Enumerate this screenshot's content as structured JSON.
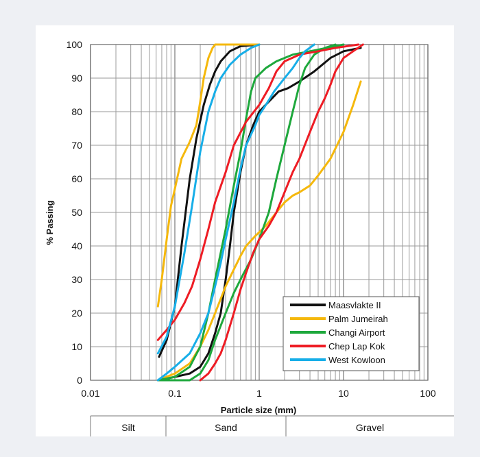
{
  "chart_data": {
    "type": "line",
    "x_scale": "log",
    "xlim": [
      0.01,
      100
    ],
    "ylim": [
      0,
      100
    ],
    "xlabel": "Particle size (mm)",
    "ylabel": "% Passing",
    "x_ticks": [
      "0.01",
      "0.1",
      "1",
      "10",
      "100"
    ],
    "y_ticks": [
      "0",
      "10",
      "20",
      "30",
      "40",
      "50",
      "60",
      "70",
      "80",
      "90",
      "100"
    ],
    "grid": true,
    "legend_position": "bottom-right",
    "classification": [
      "Silt",
      "Sand",
      "Gravel"
    ],
    "series": [
      {
        "name": "Maasvlakte II",
        "color": "#111111",
        "curves": [
          [
            [
              0.065,
              7
            ],
            [
              0.08,
              12
            ],
            [
              0.1,
              22
            ],
            [
              0.12,
              40
            ],
            [
              0.15,
              60
            ],
            [
              0.18,
              72
            ],
            [
              0.22,
              82
            ],
            [
              0.26,
              88
            ],
            [
              0.3,
              92
            ],
            [
              0.35,
              95
            ],
            [
              0.45,
              98
            ],
            [
              0.6,
              99.5
            ],
            [
              1,
              100
            ]
          ],
          [
            [
              0.065,
              0
            ],
            [
              0.1,
              1
            ],
            [
              0.15,
              2
            ],
            [
              0.2,
              4
            ],
            [
              0.25,
              8
            ],
            [
              0.3,
              14
            ],
            [
              0.35,
              20
            ],
            [
              0.4,
              30
            ],
            [
              0.45,
              40
            ],
            [
              0.5,
              50
            ],
            [
              0.6,
              62
            ],
            [
              0.7,
              70
            ],
            [
              0.85,
              76
            ],
            [
              1,
              80
            ],
            [
              1.3,
              83
            ],
            [
              1.7,
              86
            ],
            [
              2.2,
              87
            ],
            [
              3,
              89
            ],
            [
              4.5,
              92
            ],
            [
              7,
              96
            ],
            [
              10,
              98
            ],
            [
              16,
              99
            ]
          ]
        ]
      },
      {
        "name": "Palm Jumeirah",
        "color": "#f5b80c",
        "curves": [
          [
            [
              0.063,
              22
            ],
            [
              0.07,
              30
            ],
            [
              0.08,
              42
            ],
            [
              0.09,
              52
            ],
            [
              0.1,
              57
            ],
            [
              0.12,
              66
            ],
            [
              0.15,
              71
            ],
            [
              0.18,
              76
            ],
            [
              0.2,
              83
            ],
            [
              0.22,
              90
            ],
            [
              0.25,
              96
            ],
            [
              0.28,
              99
            ],
            [
              0.3,
              100
            ],
            [
              1,
              100
            ]
          ],
          [
            [
              0.063,
              0
            ],
            [
              0.1,
              2
            ],
            [
              0.15,
              5
            ],
            [
              0.2,
              10
            ],
            [
              0.25,
              15
            ],
            [
              0.3,
              20
            ],
            [
              0.4,
              28
            ],
            [
              0.5,
              33
            ],
            [
              0.6,
              37
            ],
            [
              0.7,
              40
            ],
            [
              0.9,
              43
            ],
            [
              1.2,
              46
            ],
            [
              1.6,
              50
            ],
            [
              2,
              53
            ],
            [
              2.5,
              55
            ],
            [
              3,
              56
            ],
            [
              4,
              58
            ],
            [
              5,
              61
            ],
            [
              7,
              66
            ],
            [
              10,
              74
            ],
            [
              13,
              82
            ],
            [
              16,
              89
            ]
          ]
        ]
      },
      {
        "name": "Changi Airport",
        "color": "#1ea83c",
        "curves": [
          [
            [
              0.063,
              0
            ],
            [
              0.1,
              1
            ],
            [
              0.15,
              4
            ],
            [
              0.2,
              10
            ],
            [
              0.25,
              20
            ],
            [
              0.3,
              30
            ],
            [
              0.4,
              45
            ],
            [
              0.5,
              58
            ],
            [
              0.6,
              68
            ],
            [
              0.7,
              78
            ],
            [
              0.8,
              86
            ],
            [
              0.9,
              90
            ],
            [
              1.2,
              93
            ],
            [
              1.6,
              95
            ],
            [
              2.5,
              97
            ],
            [
              4,
              98
            ],
            [
              10,
              100
            ]
          ],
          [
            [
              0.063,
              0
            ],
            [
              0.15,
              0
            ],
            [
              0.2,
              2
            ],
            [
              0.25,
              6
            ],
            [
              0.3,
              12
            ],
            [
              0.4,
              20
            ],
            [
              0.5,
              26
            ],
            [
              0.6,
              30
            ],
            [
              0.8,
              36
            ],
            [
              1,
              42
            ],
            [
              1.3,
              50
            ],
            [
              1.6,
              60
            ],
            [
              2,
              70
            ],
            [
              2.5,
              80
            ],
            [
              3,
              88
            ],
            [
              3.5,
              93
            ],
            [
              4.5,
              97
            ],
            [
              6,
              99
            ],
            [
              8,
              100
            ]
          ]
        ]
      },
      {
        "name": "Chep Lap Kok",
        "color": "#ee1c24",
        "curves": [
          [
            [
              0.063,
              12
            ],
            [
              0.08,
              15
            ],
            [
              0.1,
              18
            ],
            [
              0.13,
              23
            ],
            [
              0.16,
              28
            ],
            [
              0.2,
              36
            ],
            [
              0.25,
              45
            ],
            [
              0.3,
              53
            ],
            [
              0.4,
              62
            ],
            [
              0.5,
              70
            ],
            [
              0.7,
              77
            ],
            [
              1,
              82
            ],
            [
              1.3,
              87
            ],
            [
              1.6,
              92
            ],
            [
              2,
              95
            ],
            [
              3,
              97
            ],
            [
              5,
              98
            ],
            [
              8,
              99
            ],
            [
              15,
              100
            ]
          ],
          [
            [
              0.2,
              0
            ],
            [
              0.25,
              2
            ],
            [
              0.3,
              5
            ],
            [
              0.35,
              8
            ],
            [
              0.4,
              12
            ],
            [
              0.5,
              20
            ],
            [
              0.6,
              27
            ],
            [
              0.7,
              32
            ],
            [
              0.85,
              38
            ],
            [
              1,
              42
            ],
            [
              1.3,
              46
            ],
            [
              1.6,
              50
            ],
            [
              2,
              56
            ],
            [
              2.5,
              62
            ],
            [
              3,
              66
            ],
            [
              4,
              74
            ],
            [
              5,
              80
            ],
            [
              6,
              84
            ],
            [
              7,
              88
            ],
            [
              8,
              92
            ],
            [
              10,
              96
            ],
            [
              13,
              98
            ],
            [
              17,
              100
            ]
          ]
        ]
      },
      {
        "name": "West Kowloon",
        "color": "#17aee8",
        "curves": [
          [
            [
              0.063,
              8
            ],
            [
              0.08,
              13
            ],
            [
              0.1,
              22
            ],
            [
              0.13,
              38
            ],
            [
              0.16,
              52
            ],
            [
              0.2,
              68
            ],
            [
              0.25,
              80
            ],
            [
              0.3,
              86
            ],
            [
              0.35,
              90
            ],
            [
              0.45,
              94
            ],
            [
              0.6,
              97
            ],
            [
              0.8,
              99
            ],
            [
              1,
              100
            ]
          ],
          [
            [
              0.063,
              0
            ],
            [
              0.08,
              2
            ],
            [
              0.1,
              4
            ],
            [
              0.15,
              8
            ],
            [
              0.2,
              14
            ],
            [
              0.25,
              20
            ],
            [
              0.3,
              28
            ],
            [
              0.35,
              35
            ],
            [
              0.4,
              42
            ],
            [
              0.5,
              53
            ],
            [
              0.6,
              63
            ],
            [
              0.7,
              70
            ],
            [
              0.9,
              76
            ],
            [
              1,
              79
            ],
            [
              1.2,
              82
            ],
            [
              1.5,
              86
            ],
            [
              2,
              90
            ],
            [
              2.5,
              93
            ],
            [
              3,
              96
            ],
            [
              3.5,
              98
            ],
            [
              4.5,
              100
            ]
          ]
        ]
      }
    ]
  }
}
